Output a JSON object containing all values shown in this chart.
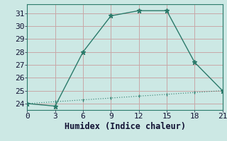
{
  "xlabel": "Humidex (Indice chaleur)",
  "background_color": "#cce8e4",
  "grid_color": "#c8a8a8",
  "line_color": "#2a7a6a",
  "x_series1": [
    0,
    3,
    6,
    9,
    12,
    15,
    18,
    21
  ],
  "y_series1": [
    24.0,
    23.8,
    28.0,
    30.8,
    31.2,
    31.2,
    27.2,
    25.0
  ],
  "x_series2_dense": [
    0,
    0.5,
    1.0,
    1.5,
    2.0,
    2.5,
    3.0,
    3.5,
    4.0,
    4.5,
    5.0,
    5.5,
    6.0,
    6.5,
    7.0,
    7.5,
    8.0,
    8.5,
    9.0,
    9.5,
    10.0,
    10.5,
    11.0,
    11.5,
    12.0,
    12.5,
    13.0,
    13.5,
    14.0,
    14.5,
    15.0,
    15.5,
    16.0,
    16.5,
    17.0,
    17.5,
    18.0,
    18.5,
    19.0,
    19.5,
    20.0,
    20.5,
    21.0
  ],
  "y_series2_dense": [
    24.0,
    24.02,
    24.05,
    24.07,
    24.09,
    24.12,
    24.14,
    24.17,
    24.19,
    24.21,
    24.24,
    24.26,
    24.29,
    24.31,
    24.33,
    24.36,
    24.38,
    24.4,
    24.43,
    24.45,
    24.48,
    24.5,
    24.52,
    24.55,
    24.57,
    24.6,
    24.62,
    24.64,
    24.67,
    24.69,
    24.71,
    24.74,
    24.76,
    24.79,
    24.81,
    24.83,
    24.86,
    24.88,
    24.9,
    24.93,
    24.95,
    24.98,
    25.0
  ],
  "x_series2_markers": [
    0,
    3,
    6,
    9,
    12,
    15,
    18,
    21
  ],
  "y_series2_markers": [
    24.0,
    24.14,
    24.29,
    24.43,
    24.57,
    24.71,
    24.86,
    25.0
  ],
  "xlim": [
    0,
    21
  ],
  "ylim": [
    23.5,
    31.7
  ],
  "yticks": [
    24,
    25,
    26,
    27,
    28,
    29,
    30,
    31
  ],
  "xticks": [
    0,
    3,
    6,
    9,
    12,
    15,
    18,
    21
  ],
  "label_fontsize": 8.5,
  "tick_fontsize": 8
}
